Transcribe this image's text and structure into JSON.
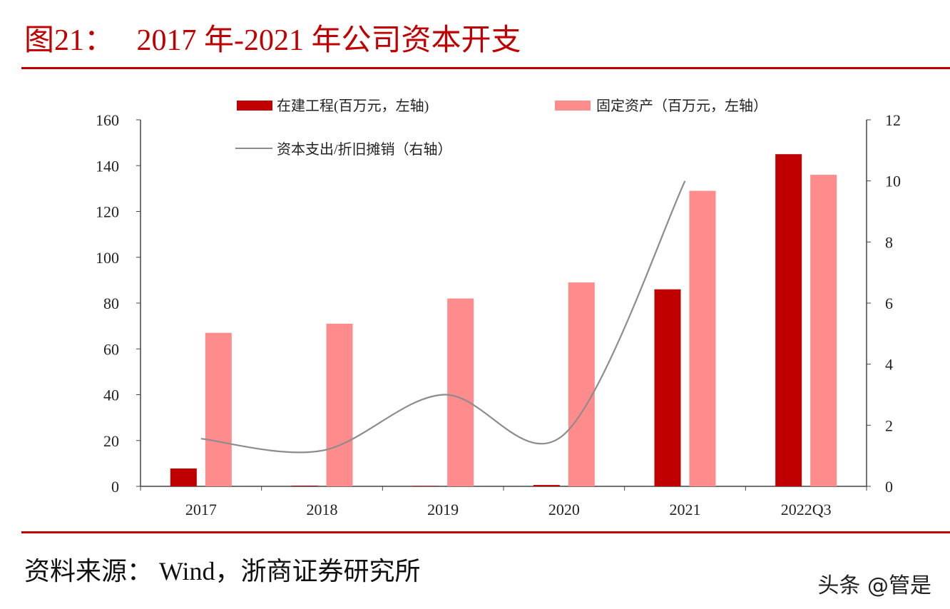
{
  "title": "图21：   2017 年-2021 年公司资本开支",
  "source": "资料来源：  Wind，浙商证券研究所",
  "watermark": "头条 @管是",
  "chart_data": {
    "type": "bar",
    "categories": [
      "2017",
      "2018",
      "2019",
      "2020",
      "2021",
      "2022Q3"
    ],
    "series": [
      {
        "name": "在建工程(百万元，左轴)",
        "type": "bar",
        "axis": "left",
        "color": "#c00000",
        "values": [
          7.8,
          0.3,
          0.2,
          0.6,
          86,
          145
        ]
      },
      {
        "name": "固定资产（百万元，左轴）",
        "type": "bar",
        "axis": "left",
        "color": "#ff8c8c",
        "values": [
          67,
          71,
          82,
          89,
          129,
          136
        ]
      },
      {
        "name": "资本支出/折旧摊销（右轴）",
        "type": "line",
        "axis": "right",
        "color": "#8c8c8c",
        "values": [
          1.56,
          1.17,
          3.0,
          1.7,
          10.0,
          null
        ]
      }
    ],
    "y_left": {
      "range": [
        0,
        160
      ],
      "ticks": [
        "0",
        "20",
        "40",
        "60",
        "80",
        "100",
        "120",
        "140",
        "160"
      ]
    },
    "y_right": {
      "range": [
        0,
        12
      ],
      "ticks": [
        "0",
        "2",
        "4",
        "6",
        "8",
        "10",
        "12"
      ]
    },
    "grid": false,
    "legend_position": "top"
  }
}
